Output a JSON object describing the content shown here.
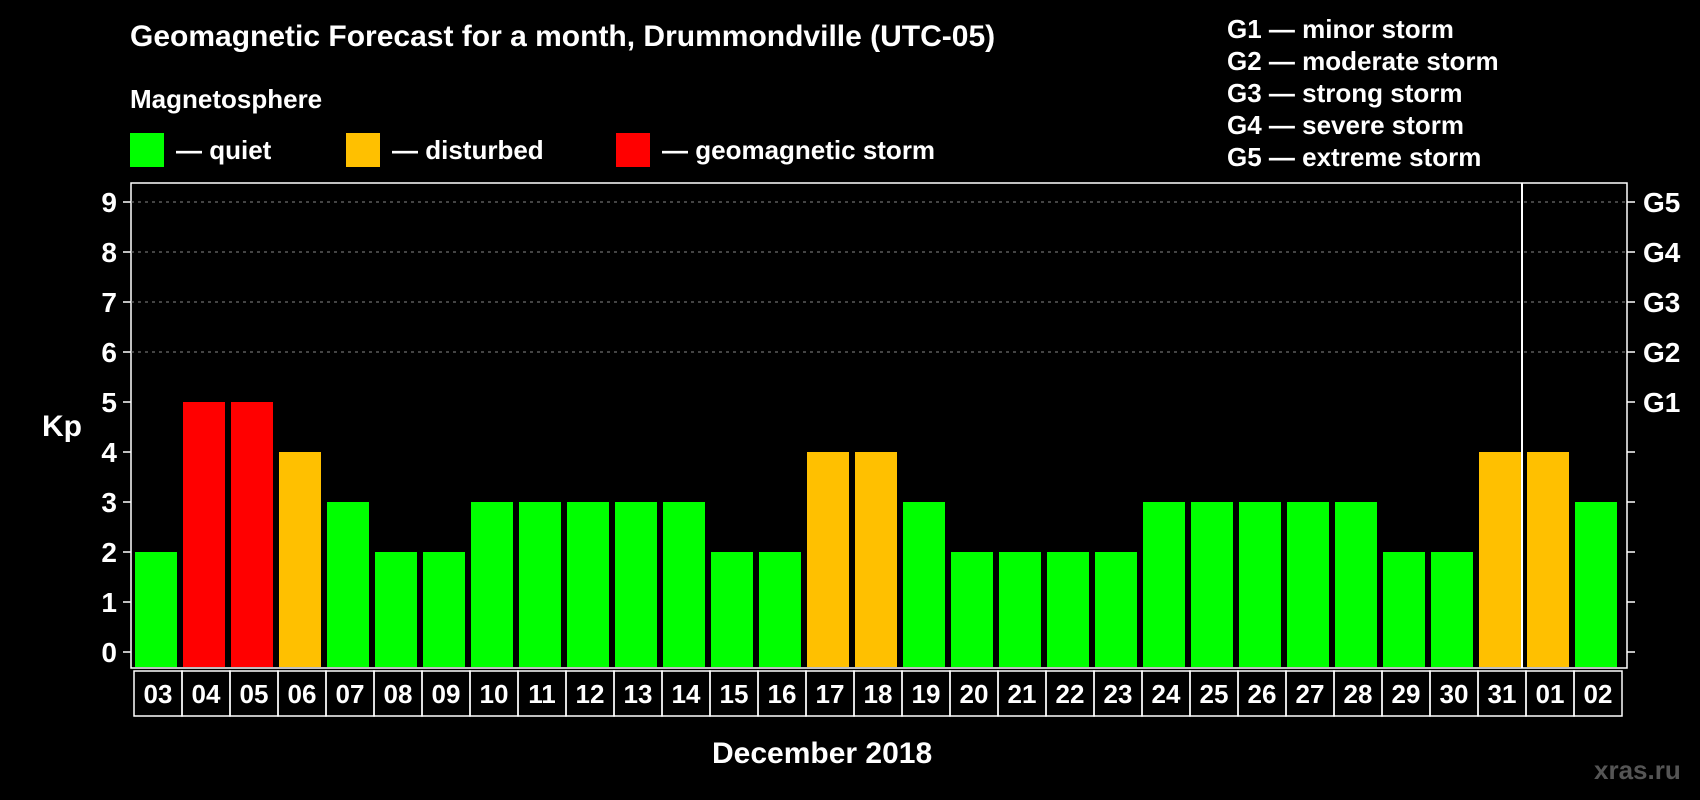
{
  "title": "Geomagnetic Forecast for a month, Drummondville (UTC-05)",
  "magnetosphere": {
    "title": "Magnetosphere",
    "legend": [
      {
        "label": "— quiet",
        "color": "#00ff00"
      },
      {
        "label": "— disturbed",
        "color": "#ffc000"
      },
      {
        "label": "— geomagnetic storm",
        "color": "#ff0000"
      }
    ]
  },
  "storm_levels": [
    "G1 — minor storm",
    "G2 — moderate storm",
    "G3 — strong storm",
    "G4 — severe storm",
    "G5 — extreme storm"
  ],
  "watermark": "xras.ru",
  "chart_data": {
    "type": "bar",
    "ylabel": "Kp",
    "xlabel": "December 2018",
    "ylim": [
      0,
      9
    ],
    "yticks": [
      "0",
      "1",
      "2",
      "3",
      "4",
      "5",
      "6",
      "7",
      "8",
      "9"
    ],
    "right_ticks": [
      {
        "kp": 5,
        "label": "G1"
      },
      {
        "kp": 6,
        "label": "G2"
      },
      {
        "kp": 7,
        "label": "G3"
      },
      {
        "kp": 8,
        "label": "G4"
      },
      {
        "kp": 9,
        "label": "G5"
      }
    ],
    "grid": "dashed horizontal at Kp 6-9",
    "month_divider_after": "31",
    "categories": [
      "03",
      "04",
      "05",
      "06",
      "07",
      "08",
      "09",
      "10",
      "11",
      "12",
      "13",
      "14",
      "15",
      "16",
      "17",
      "18",
      "19",
      "20",
      "21",
      "22",
      "23",
      "24",
      "25",
      "26",
      "27",
      "28",
      "29",
      "30",
      "31",
      "01",
      "02"
    ],
    "values": [
      2,
      5,
      5,
      4,
      3,
      2,
      2,
      3,
      3,
      3,
      3,
      3,
      2,
      2,
      4,
      4,
      3,
      2,
      2,
      2,
      2,
      3,
      3,
      3,
      3,
      3,
      2,
      2,
      4,
      4,
      3
    ],
    "colors": {
      "quiet": "#00ff00",
      "disturbed": "#ffc000",
      "storm": "#ff0000"
    }
  }
}
